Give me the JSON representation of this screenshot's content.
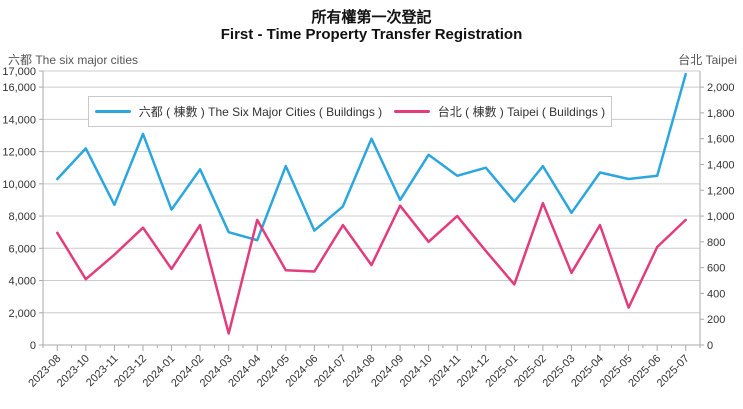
{
  "header": {
    "title_zh": "所有權第一次登記",
    "title_en": "First - Time Property Transfer Registration",
    "left_corner_label": "六都  The six major cities",
    "right_corner_label": "台北 Taipei"
  },
  "legend": {
    "items": [
      {
        "label": "六都 ( 棟數 ) The Six Major Cities ( Buildings )",
        "color": "#2ca6df"
      },
      {
        "label": "台北 ( 棟數 ) Taipei ( Buildings )",
        "color": "#e23c7d"
      }
    ]
  },
  "chart_data": {
    "type": "line",
    "title": "所有權第一次登記 / First - Time Property Transfer Registration",
    "categories": [
      "2023-08",
      "2023-10",
      "2023-11",
      "2023-12",
      "2024-01",
      "2024-02",
      "2024-03",
      "2024-04",
      "2024-05",
      "2024-06",
      "2024-07",
      "2024-08",
      "2024-09",
      "2024-10",
      "2024-11",
      "2024-12",
      "2025-01",
      "2025-02",
      "2025-03",
      "2025-04",
      "2025-05",
      "2025-06",
      "2025-07"
    ],
    "series": [
      {
        "name": "六都 ( 棟數 ) The Six Major Cities ( Buildings )",
        "axis": "left",
        "color": "#2ca6df",
        "values": [
          10300,
          12200,
          8700,
          13100,
          8400,
          10900,
          7000,
          6500,
          11100,
          7100,
          8600,
          12800,
          9000,
          11800,
          10500,
          11000,
          8900,
          11100,
          8200,
          10700,
          10300,
          10500,
          16800
        ]
      },
      {
        "name": "台北 ( 棟數 ) Taipei ( Buildings )",
        "axis": "right",
        "color": "#e23c7d",
        "values": [
          870,
          510,
          700,
          910,
          590,
          930,
          90,
          970,
          580,
          570,
          930,
          620,
          1080,
          800,
          1000,
          730,
          470,
          1100,
          560,
          930,
          290,
          760,
          970
        ]
      }
    ],
    "left_axis": {
      "label": "六都  The six major cities",
      "min": 0,
      "max": 17000,
      "ticks": [
        0,
        2000,
        4000,
        6000,
        8000,
        10000,
        12000,
        14000,
        16000,
        17000
      ]
    },
    "right_axis": {
      "label": "台北 Taipei",
      "min": 0,
      "max": 2125,
      "ticks": [
        0,
        200,
        400,
        600,
        800,
        1000,
        1200,
        1400,
        1600,
        1800,
        2000
      ]
    },
    "grid": "horizontal",
    "legend_position": "top-inside",
    "colors": {
      "gridline": "#cccccc",
      "axis": "#aaaaaa",
      "tick_text": "#333333"
    }
  }
}
